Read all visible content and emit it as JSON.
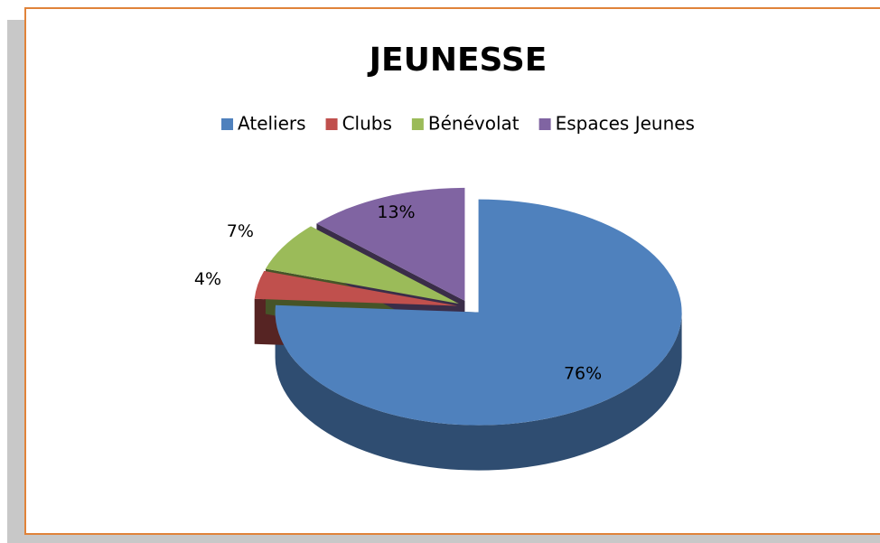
{
  "chart_data": {
    "type": "pie",
    "title": "JEUNESSE",
    "categories": [
      "Ateliers",
      "Clubs",
      "Bénévolat",
      "Espaces Jeunes"
    ],
    "values": [
      76,
      4,
      7,
      13
    ],
    "value_labels": [
      "76%",
      "4%",
      "7%",
      "13%"
    ],
    "colors": [
      "#4f81bd",
      "#c0504d",
      "#9bbb59",
      "#8064a2"
    ],
    "legend": "top"
  }
}
